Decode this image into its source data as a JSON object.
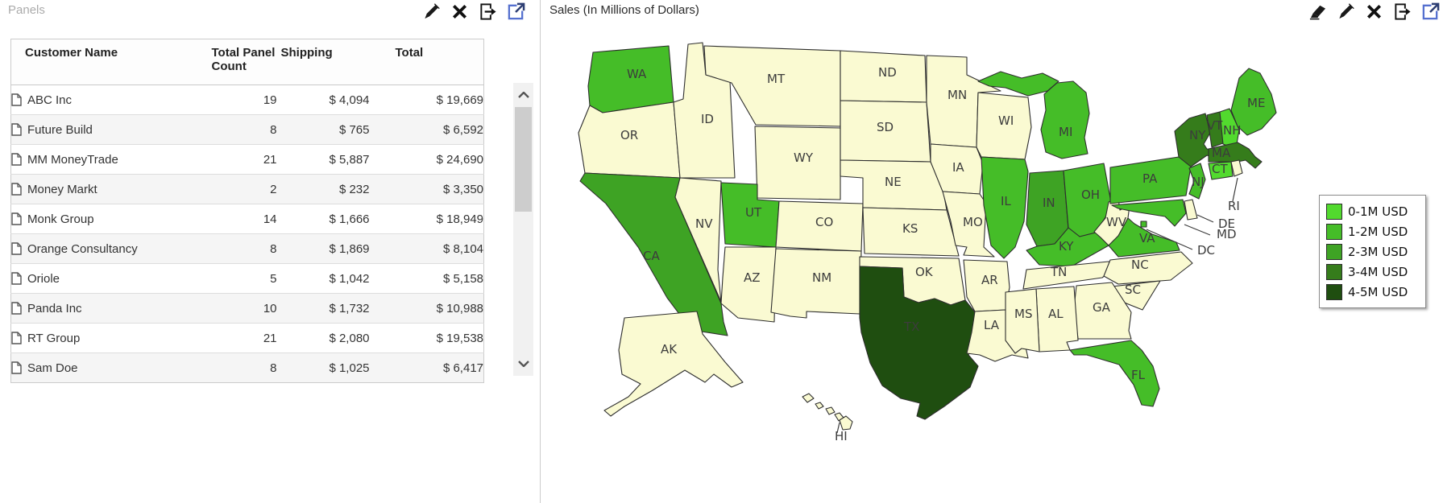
{
  "left_panel": {
    "title": "Panels",
    "toolbar": {
      "icons": [
        "pencil",
        "close",
        "export",
        "open-external"
      ]
    },
    "table": {
      "columns": [
        {
          "key": "name",
          "label": "Customer Name"
        },
        {
          "key": "count",
          "label": "Total Panel Count"
        },
        {
          "key": "shipping",
          "label": "Shipping"
        },
        {
          "key": "total",
          "label": "Total"
        }
      ],
      "rows": [
        {
          "name": "ABC Inc",
          "count": "19",
          "shipping": "$ 4,094",
          "total": "$ 19,669"
        },
        {
          "name": "Future Build",
          "count": "8",
          "shipping": "$ 765",
          "total": "$ 6,592"
        },
        {
          "name": "MM MoneyTrade",
          "count": "21",
          "shipping": "$ 5,887",
          "total": "$ 24,690"
        },
        {
          "name": "Money Markt",
          "count": "2",
          "shipping": "$ 232",
          "total": "$ 3,350"
        },
        {
          "name": "Monk Group",
          "count": "14",
          "shipping": "$ 1,666",
          "total": "$ 18,949"
        },
        {
          "name": "Orange Consultancy",
          "count": "8",
          "shipping": "$ 1,869",
          "total": "$ 8,104"
        },
        {
          "name": "Oriole",
          "count": "5",
          "shipping": "$ 1,042",
          "total": "$ 5,158"
        },
        {
          "name": "Panda Inc",
          "count": "10",
          "shipping": "$ 1,732",
          "total": "$ 10,988"
        },
        {
          "name": "RT Group",
          "count": "21",
          "shipping": "$ 2,080",
          "total": "$ 19,538"
        },
        {
          "name": "Sam Doe",
          "count": "8",
          "shipping": "$ 1,025",
          "total": "$ 6,417"
        }
      ]
    }
  },
  "right_panel": {
    "title": "Sales (In Millions of Dollars)",
    "toolbar": {
      "icons": [
        "eraser",
        "pencil",
        "close",
        "export",
        "open-external"
      ]
    },
    "legend": [
      {
        "label": "0-1M USD",
        "color": "#52da2e"
      },
      {
        "label": "1-2M USD",
        "color": "#45bd28"
      },
      {
        "label": "2-3M USD",
        "color": "#3ea324"
      },
      {
        "label": "3-4M USD",
        "color": "#357c1b"
      },
      {
        "label": "4-5M USD",
        "color": "#1f4e10"
      }
    ],
    "map": {
      "no_data_color": "#fafad2",
      "border_color": "#2e2e2e",
      "states": [
        {
          "code": "WA",
          "bucket": "1-2M USD"
        },
        {
          "code": "OR",
          "bucket": null
        },
        {
          "code": "CA",
          "bucket": "2-3M USD"
        },
        {
          "code": "NV",
          "bucket": null
        },
        {
          "code": "ID",
          "bucket": null
        },
        {
          "code": "MT",
          "bucket": null
        },
        {
          "code": "WY",
          "bucket": null
        },
        {
          "code": "UT",
          "bucket": "1-2M USD"
        },
        {
          "code": "CO",
          "bucket": null
        },
        {
          "code": "AZ",
          "bucket": null
        },
        {
          "code": "NM",
          "bucket": null
        },
        {
          "code": "ND",
          "bucket": null
        },
        {
          "code": "SD",
          "bucket": null
        },
        {
          "code": "NE",
          "bucket": null
        },
        {
          "code": "KS",
          "bucket": null
        },
        {
          "code": "OK",
          "bucket": null
        },
        {
          "code": "TX",
          "bucket": "4-5M USD"
        },
        {
          "code": "MN",
          "bucket": null
        },
        {
          "code": "WI",
          "bucket": null
        },
        {
          "code": "IA",
          "bucket": null
        },
        {
          "code": "MO",
          "bucket": null
        },
        {
          "code": "AR",
          "bucket": null
        },
        {
          "code": "LA",
          "bucket": null
        },
        {
          "code": "IL",
          "bucket": "1-2M USD"
        },
        {
          "code": "IN",
          "bucket": "2-3M USD"
        },
        {
          "code": "OH",
          "bucket": "1-2M USD"
        },
        {
          "code": "MI",
          "bucket": "1-2M USD"
        },
        {
          "code": "KY",
          "bucket": "1-2M USD"
        },
        {
          "code": "TN",
          "bucket": null
        },
        {
          "code": "WV",
          "bucket": null
        },
        {
          "code": "VA",
          "bucket": "1-2M USD"
        },
        {
          "code": "PA",
          "bucket": "1-2M USD"
        },
        {
          "code": "NY",
          "bucket": "3-4M USD"
        },
        {
          "code": "NJ",
          "bucket": "1-2M USD"
        },
        {
          "code": "MD",
          "bucket": "1-2M USD"
        },
        {
          "code": "DE",
          "bucket": null
        },
        {
          "code": "DC",
          "bucket": "1-2M USD"
        },
        {
          "code": "NC",
          "bucket": null
        },
        {
          "code": "SC",
          "bucket": null
        },
        {
          "code": "GA",
          "bucket": null
        },
        {
          "code": "AL",
          "bucket": null
        },
        {
          "code": "MS",
          "bucket": null
        },
        {
          "code": "FL",
          "bucket": "1-2M USD"
        },
        {
          "code": "VT",
          "bucket": "3-4M USD"
        },
        {
          "code": "NH",
          "bucket": "0-1M USD"
        },
        {
          "code": "MA",
          "bucket": "3-4M USD"
        },
        {
          "code": "CT",
          "bucket": "0-1M USD"
        },
        {
          "code": "RI",
          "bucket": null
        },
        {
          "code": "ME",
          "bucket": "1-2M USD"
        },
        {
          "code": "AK",
          "bucket": null
        },
        {
          "code": "HI",
          "bucket": null
        }
      ]
    }
  }
}
